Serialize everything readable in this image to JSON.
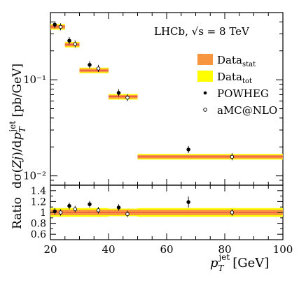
{
  "chart_data": [
    {
      "type": "scatter",
      "annotation_label": "LHCb, √s = 8 TeV",
      "ylabel": "dσ(Zj)/dp_T^jet [pb/GeV]",
      "yscale": "log",
      "ylim": [
        0.008,
        0.5
      ],
      "xlim": [
        20,
        100
      ],
      "yticks": [
        "10⁻²",
        "10⁻¹"
      ],
      "legend": {
        "placement": "right",
        "entries": [
          {
            "label": "Data",
            "subscript": "stat",
            "marker": "box",
            "color": "#f7963e"
          },
          {
            "label": "Data",
            "subscript": "tot",
            "marker": "box",
            "color": "#ffff00"
          },
          {
            "label": "POWHEG",
            "marker": "filled-circle"
          },
          {
            "label": "aMC@NLO",
            "marker": "open-circle"
          }
        ]
      },
      "data_bins": [
        {
          "xlo": 20,
          "xhi": 25,
          "y": 0.355
        },
        {
          "xlo": 25,
          "xhi": 30,
          "y": 0.232
        },
        {
          "xlo": 30,
          "xhi": 40,
          "y": 0.125
        },
        {
          "xlo": 40,
          "xhi": 50,
          "y": 0.0665
        },
        {
          "xlo": 50,
          "xhi": 100,
          "y": 0.0158
        }
      ],
      "series": [
        {
          "name": "POWHEG",
          "x": [
            21.5,
            26.5,
            33.5,
            43.5,
            67.5
          ],
          "y": [
            0.375,
            0.255,
            0.143,
            0.073,
            0.0188
          ]
        },
        {
          "name": "aMC@NLO",
          "x": [
            23.5,
            28.5,
            36.5,
            46.5,
            82.5
          ],
          "y": [
            0.355,
            0.235,
            0.131,
            0.065,
            0.0158
          ]
        }
      ]
    },
    {
      "type": "scatter",
      "ylabel": "Ratio",
      "xlabel": "p_T^jet [GeV]",
      "xlim": [
        20,
        100
      ],
      "ylim": [
        0.5,
        1.5
      ],
      "xticks": [
        "20",
        "40",
        "60",
        "80",
        "100"
      ],
      "yticks": [
        "0.6",
        "0.8",
        "1",
        "1.2",
        "1.4"
      ],
      "series": [
        {
          "name": "POWHEG",
          "x": [
            21.5,
            26.5,
            33.5,
            43.5,
            67.5
          ],
          "y": [
            1.02,
            1.12,
            1.15,
            1.09,
            1.19
          ]
        },
        {
          "name": "aMC@NLO",
          "x": [
            23.5,
            28.5,
            36.5,
            46.5,
            82.5
          ],
          "y": [
            1.0,
            1.06,
            1.04,
            0.97,
            1.0
          ]
        }
      ]
    }
  ],
  "colors": {
    "stat": "#f7963e",
    "tot": "#ffff00",
    "center": "#e8384f"
  }
}
